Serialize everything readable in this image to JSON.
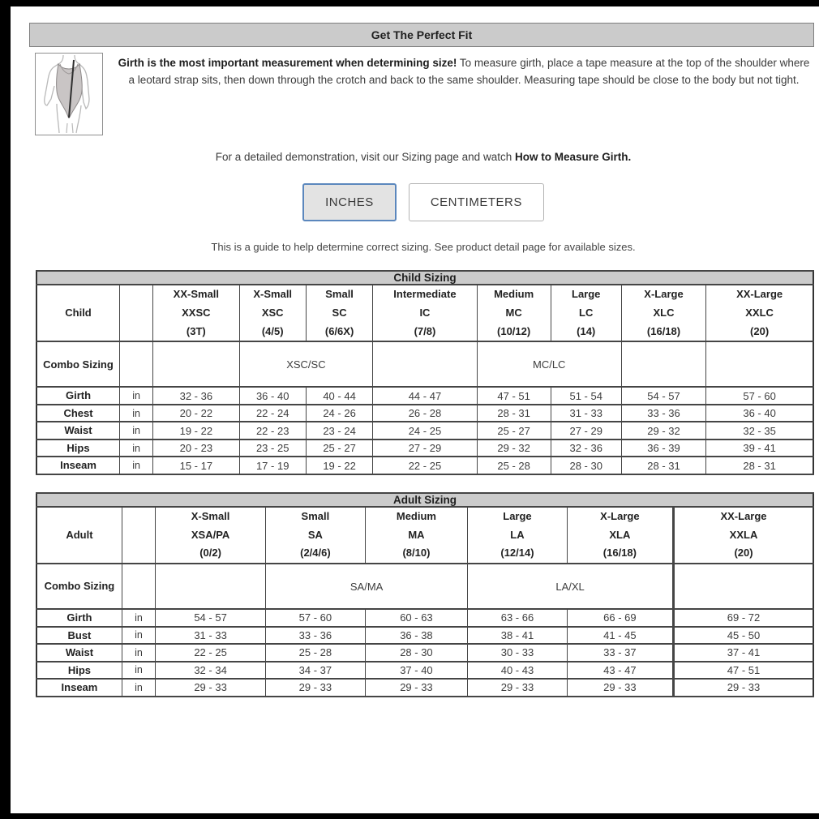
{
  "page": {
    "title": "Get The Perfect Fit",
    "intro": {
      "bold": "Girth is the most important measurement when determining size!",
      "text": " To measure girth, place a tape measure at the top of the shoulder where a leotard strap sits, then down through the crotch and back to the same shoulder. Measuring tape should be close to the body but not tight."
    },
    "demo": {
      "prefix": "For a detailed demonstration, visit our Sizing page and watch ",
      "bold": "How to Measure Girth."
    },
    "note": "This is a guide to help determine correct sizing. See product detail page for available sizes.",
    "illustration": "leotard-girth-measurement-diagram"
  },
  "unit_toggle": {
    "options": [
      "INCHES",
      "CENTIMETERS"
    ],
    "selected": "INCHES"
  },
  "colors": {
    "accent_blue": "#5b87bd",
    "bar_gray": "#cbcbcb",
    "frame_black": "#000000"
  },
  "child_table": {
    "title": "Child Sizing",
    "row_header": "Child",
    "combo_header": "Combo Sizing",
    "columns": [
      {
        "name": "XX-Small",
        "code": "XXSC",
        "range": "(3T)"
      },
      {
        "name": "X-Small",
        "code": "XSC",
        "range": "(4/5)"
      },
      {
        "name": "Small",
        "code": "SC",
        "range": "(6/6X)"
      },
      {
        "name": "Intermediate",
        "code": "IC",
        "range": "(7/8)"
      },
      {
        "name": "Medium",
        "code": "MC",
        "range": "(10/12)"
      },
      {
        "name": "Large",
        "code": "LC",
        "range": "(14)"
      },
      {
        "name": "X-Large",
        "code": "XLC",
        "range": "(16/18)"
      },
      {
        "name": "XX-Large",
        "code": "XXLC",
        "range": "(20)"
      }
    ],
    "combo_cells": [
      {
        "span": 1,
        "label": ""
      },
      {
        "span": 2,
        "label": "XSC/SC"
      },
      {
        "span": 1,
        "label": ""
      },
      {
        "span": 2,
        "label": "MC/LC"
      },
      {
        "span": 1,
        "label": ""
      },
      {
        "span": 1,
        "label": ""
      }
    ],
    "rows": [
      {
        "label": "Girth",
        "unit": "in",
        "values": [
          "32 - 36",
          "36 - 40",
          "40 - 44",
          "44 - 47",
          "47 - 51",
          "51 - 54",
          "54 - 57",
          "57 - 60"
        ]
      },
      {
        "label": "Chest",
        "unit": "in",
        "values": [
          "20 - 22",
          "22 - 24",
          "24 - 26",
          "26 - 28",
          "28 - 31",
          "31 - 33",
          "33 - 36",
          "36 - 40"
        ]
      },
      {
        "label": "Waist",
        "unit": "in",
        "values": [
          "19 - 22",
          "22 - 23",
          "23 - 24",
          "24 - 25",
          "25 - 27",
          "27 - 29",
          "29 - 32",
          "32 - 35"
        ]
      },
      {
        "label": "Hips",
        "unit": "in",
        "values": [
          "20 - 23",
          "23 - 25",
          "25 - 27",
          "27 - 29",
          "29 - 32",
          "32 - 36",
          "36 - 39",
          "39 - 41"
        ]
      },
      {
        "label": "Inseam",
        "unit": "in",
        "values": [
          "15 - 17",
          "17 - 19",
          "19 - 22",
          "22 - 25",
          "25 - 28",
          "28 - 30",
          "28 - 31",
          "28 - 31"
        ]
      }
    ]
  },
  "adult_table": {
    "title": "Adult Sizing",
    "row_header": "Adult",
    "combo_header": "Combo Sizing",
    "columns": [
      {
        "name": "X-Small",
        "code": "XSA/PA",
        "range": "(0/2)"
      },
      {
        "name": "Small",
        "code": "SA",
        "range": "(2/4/6)"
      },
      {
        "name": "Medium",
        "code": "MA",
        "range": "(8/10)"
      },
      {
        "name": "Large",
        "code": "LA",
        "range": "(12/14)"
      },
      {
        "name": "X-Large",
        "code": "XLA",
        "range": "(16/18)"
      },
      {
        "name": "XX-Large",
        "code": "XXLA",
        "range": "(20)"
      }
    ],
    "combo_cells": [
      {
        "span": 1,
        "label": ""
      },
      {
        "span": 2,
        "label": "SA/MA"
      },
      {
        "span": 2,
        "label": "LA/XL"
      },
      {
        "span": 1,
        "label": ""
      }
    ],
    "rows": [
      {
        "label": "Girth",
        "unit": "in",
        "values": [
          "54 - 57",
          "57 - 60",
          "60 - 63",
          "63 - 66",
          "66 - 69",
          "69 - 72"
        ]
      },
      {
        "label": "Bust",
        "unit": "in",
        "values": [
          "31 - 33",
          "33 - 36",
          "36 - 38",
          "38 - 41",
          "41 - 45",
          "45 - 50"
        ]
      },
      {
        "label": "Waist",
        "unit": "in",
        "values": [
          "22 - 25",
          "25 - 28",
          "28 - 30",
          "30 - 33",
          "33 - 37",
          "37 - 41"
        ]
      },
      {
        "label": "Hips",
        "unit": "in",
        "values": [
          "32 - 34",
          "34 - 37",
          "37 - 40",
          "40 - 43",
          "43 - 47",
          "47 - 51"
        ]
      },
      {
        "label": "Inseam",
        "unit": "in",
        "values": [
          "29 - 33",
          "29 - 33",
          "29 - 33",
          "29 - 33",
          "29 - 33",
          "29 - 33"
        ]
      }
    ]
  }
}
